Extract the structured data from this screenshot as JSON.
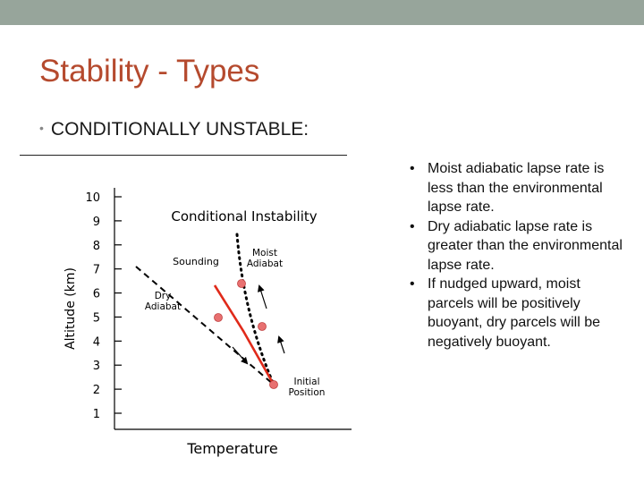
{
  "slide": {
    "title": "Stability - Types",
    "subtitle": "CONDITIONALLY UNSTABLE:"
  },
  "diagram": {
    "title": "Conditional Instability",
    "ylabel": "Altitude (km)",
    "xlabel": "Temperature",
    "yticks": [
      "1",
      "2",
      "3",
      "4",
      "5",
      "6",
      "7",
      "8",
      "9",
      "10"
    ],
    "labels": {
      "sounding": "Sounding",
      "moist_line1": "Moist",
      "moist_line2": "Adiabat",
      "dry_line1": "Dry",
      "dry_line2": "Adiabat",
      "initial_line1": "Initial",
      "initial_line2": "Position"
    },
    "colors": {
      "sounding": "#e02a1a",
      "parcel": "#e87070",
      "axis": "#000000"
    }
  },
  "bullets": [
    "Moist adiabatic lapse rate is less than the environmental lapse rate.",
    "Dry adiabatic lapse rate is greater than the environmental lapse rate.",
    "If nudged upward, moist parcels will be positively buoyant, dry parcels will be negatively buoyant."
  ],
  "bullet_char": "•"
}
